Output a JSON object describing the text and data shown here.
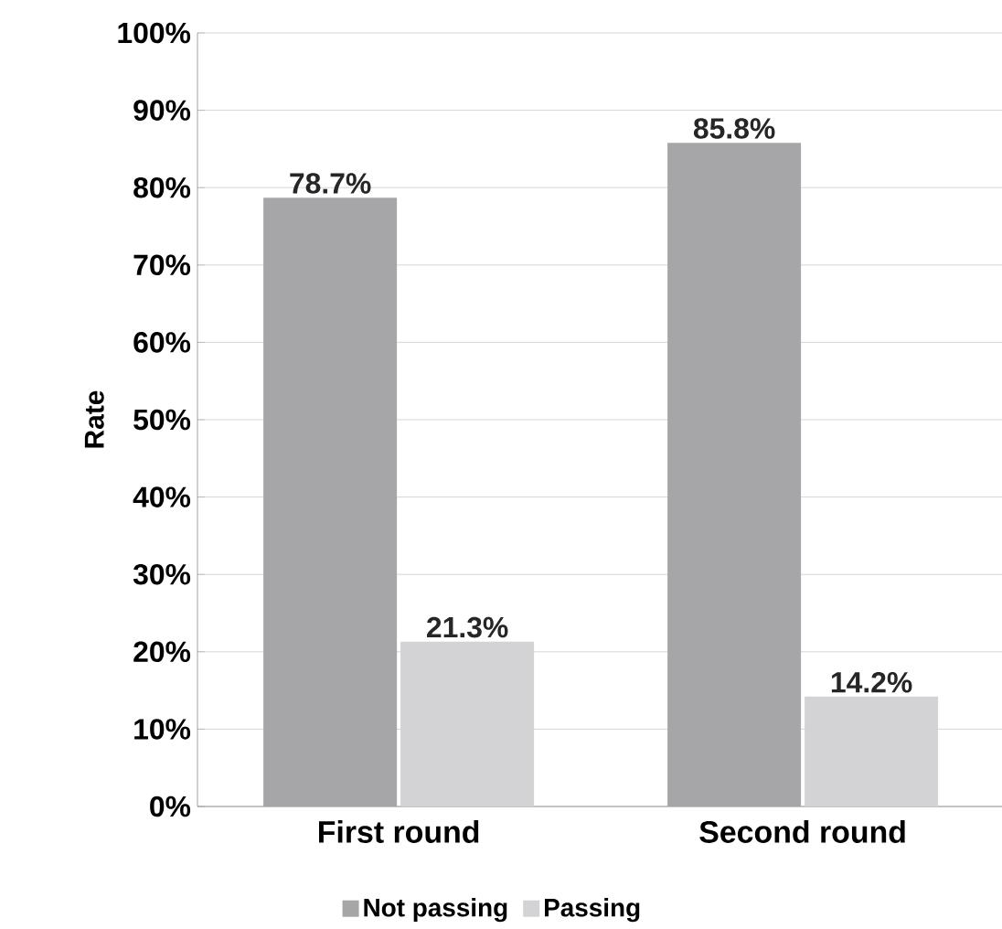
{
  "chart_data": {
    "type": "bar",
    "ylabel": "Rate",
    "categories": [
      "First round",
      "Second round"
    ],
    "series": [
      {
        "name": "Not passing",
        "color": "#a6a6a8",
        "values": [
          78.7,
          85.8
        ],
        "value_labels": [
          "78.7%",
          "85.8%"
        ]
      },
      {
        "name": "Passing",
        "color": "#d3d3d5",
        "values": [
          21.3,
          14.2
        ],
        "value_labels": [
          "21.3%",
          "14.2%"
        ]
      }
    ],
    "ylim": [
      0,
      100
    ],
    "yticks": [
      {
        "value": 0,
        "label": "0%"
      },
      {
        "value": 10,
        "label": "10%"
      },
      {
        "value": 20,
        "label": "20%"
      },
      {
        "value": 30,
        "label": "30%"
      },
      {
        "value": 40,
        "label": "40%"
      },
      {
        "value": 50,
        "label": "50%"
      },
      {
        "value": 60,
        "label": "60%"
      },
      {
        "value": 70,
        "label": "70%"
      },
      {
        "value": 80,
        "label": "80%"
      },
      {
        "value": 90,
        "label": "90%"
      },
      {
        "value": 100,
        "label": "100%"
      }
    ],
    "grid": "y",
    "legend": "bottom"
  }
}
